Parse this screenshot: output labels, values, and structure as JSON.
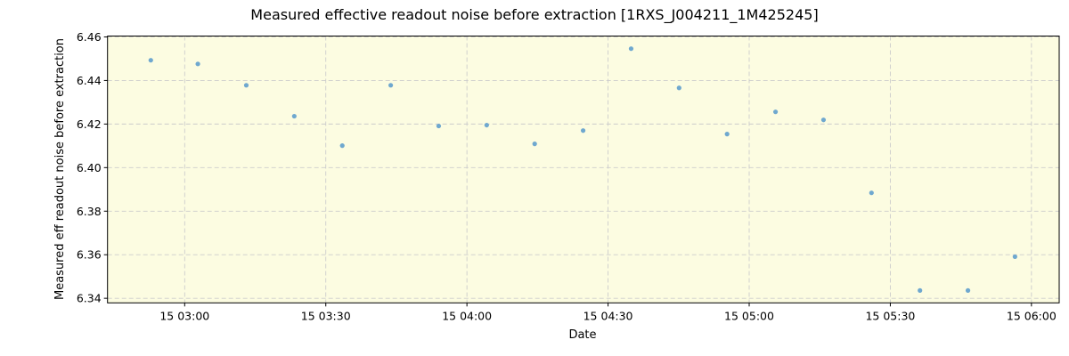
{
  "chart_data": {
    "type": "scatter",
    "title": "Measured effective readout noise before extraction [1RXS_J004211_1M425245]",
    "xlabel": "Date",
    "ylabel": "Measured eff readout noise before extraction",
    "x_tick_labels": [
      "15 03:00",
      "15 03:30",
      "15 04:00",
      "15 04:30",
      "15 05:00",
      "15 05:30",
      "15 06:00"
    ],
    "y_tick_labels": [
      "6.34",
      "6.36",
      "6.38",
      "6.40",
      "6.42",
      "6.44",
      "6.46"
    ],
    "y_ticks": [
      6.34,
      6.36,
      6.38,
      6.4,
      6.42,
      6.44,
      6.46
    ],
    "ylim": [
      6.3379,
      6.4604
    ],
    "xlim": [
      "15 02:43.6",
      "15 06:05.9"
    ],
    "x_tick_minutes": [
      0,
      30,
      60,
      90,
      120,
      150,
      180
    ],
    "xlim_minutes": [
      -16.4,
      185.9
    ],
    "grid": true,
    "legend": null,
    "series": [
      {
        "name": "eff readout noise",
        "x": [
          "15 02:52.8",
          "15 03:02.8",
          "15 03:13.1",
          "15 03:23.3",
          "15 03:33.5",
          "15 03:43.8",
          "15 03:54.0",
          "15 04:04.2",
          "15 04:14.4",
          "15 04:24.7",
          "15 04:34.9",
          "15 04:45.1",
          "15 04:55.3",
          "15 05:05.6",
          "15 05:15.8",
          "15 05:26.0",
          "15 05:36.3",
          "15 05:46.5",
          "15 05:56.5"
        ],
        "x_minutes": [
          -7.2,
          2.8,
          13.1,
          23.3,
          33.5,
          43.8,
          54.0,
          64.2,
          74.4,
          84.7,
          94.9,
          105.1,
          115.3,
          125.6,
          135.8,
          146.0,
          156.3,
          166.5,
          176.5
        ],
        "values": [
          6.4493,
          6.4476,
          6.4378,
          6.4236,
          6.4101,
          6.4378,
          6.4191,
          6.4195,
          6.4109,
          6.417,
          6.4546,
          6.4366,
          6.4154,
          6.4256,
          6.4219,
          6.3884,
          6.3436,
          6.3436,
          6.3591
        ]
      }
    ],
    "colors": {
      "plot_background": "#fcfce1",
      "marker": "#6fa8cf",
      "grid": "#cccccc",
      "axes": "#000000"
    }
  }
}
